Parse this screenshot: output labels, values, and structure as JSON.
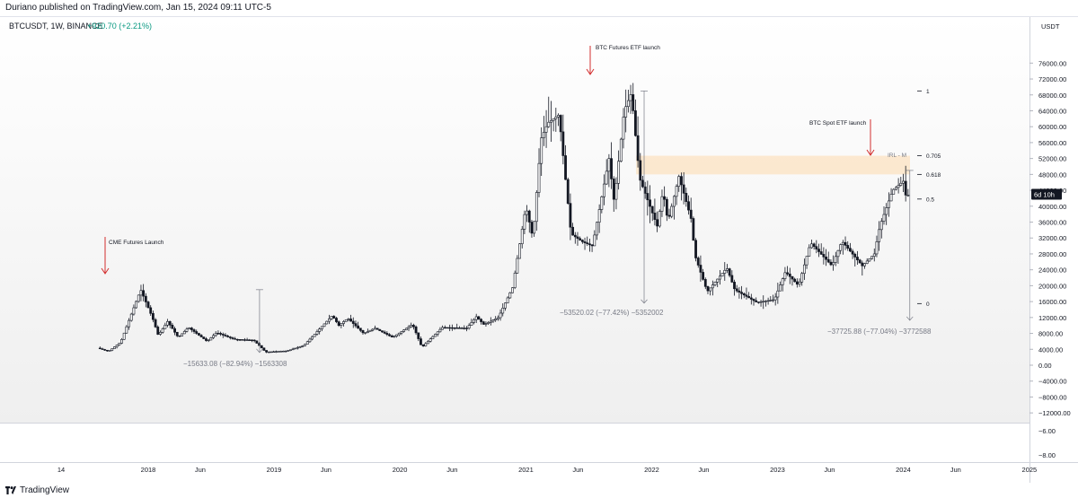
{
  "header": {
    "published": "Duriano published on TradingView.com, Jan 15, 2024 09:11 UTC-5"
  },
  "symbol": {
    "title": "BTCUSDT, 1W, BINANCE",
    "change": "+920.70 (+2.21%)",
    "change_color": "#089981"
  },
  "footer": {
    "brand": "TradingView"
  },
  "price_axis": {
    "currency": "USDT",
    "ticks": [
      "76000.00",
      "72000.00",
      "68000.00",
      "64000.00",
      "60000.00",
      "56000.00",
      "52000.00",
      "48000.00",
      "44000.00",
      "40000.00",
      "36000.00",
      "32000.00",
      "28000.00",
      "24000.00",
      "20000.00",
      "16000.00",
      "12000.00",
      "8000.00",
      "4000.00",
      "0.00",
      "−4000.00",
      "−8000.00",
      "−12000.00"
    ],
    "countdown": "6d 10h",
    "last_price": 43000
  },
  "sub_axis": {
    "ticks": [
      "−6.00",
      "−8.00"
    ]
  },
  "time_axis": {
    "labels": [
      "14",
      "2018",
      "Jun",
      "2019",
      "Jun",
      "2020",
      "Jun",
      "2021",
      "Jun",
      "2022",
      "Jun",
      "2023",
      "Jun",
      "2024",
      "Jun",
      "2025"
    ]
  },
  "annotations": {
    "cme": "CME Futures Launch",
    "futures_etf": "BTC Futures ETF launch",
    "spot_etf": "BTC Spot ETF launch",
    "measure1": "−15633.08 (−82.94%) −1563308",
    "measure2": "−53520.02 (−77.42%) −5352002",
    "measure3": "−37725.88 (−77.04%) −3772588",
    "zone_label": "IRL - M"
  },
  "fib_levels": [
    {
      "label": "1",
      "price": 69000
    },
    {
      "label": "0.705",
      "price": 52700
    },
    {
      "label": "0.618",
      "price": 48000
    },
    {
      "label": "0.5",
      "price": 41800
    },
    {
      "label": "0",
      "price": 15500
    }
  ],
  "colors": {
    "candle": "#131722",
    "arrow": "#d32f2f",
    "zone": "#fbe5c8",
    "measure": "#787b86",
    "countdown_bg": "#131722"
  },
  "chart_data": {
    "type": "candlestick",
    "title": "BTCUSDT, 1W, BINANCE",
    "ylim": [
      -12000,
      78000
    ],
    "x_range": [
      "2017-08-14",
      "2025-04-01"
    ],
    "anchors": [
      [
        "2017-08-14",
        4300
      ],
      [
        "2017-09-15",
        3500
      ],
      [
        "2017-10-20",
        5800
      ],
      [
        "2017-12-17",
        19000
      ],
      [
        "2018-01-20",
        12000
      ],
      [
        "2018-02-06",
        7500
      ],
      [
        "2018-03-05",
        11000
      ],
      [
        "2018-04-05",
        7000
      ],
      [
        "2018-05-05",
        9500
      ],
      [
        "2018-06-28",
        6000
      ],
      [
        "2018-07-25",
        8200
      ],
      [
        "2018-09-15",
        6500
      ],
      [
        "2018-11-10",
        6300
      ],
      [
        "2018-12-15",
        3300
      ],
      [
        "2019-02-15",
        3600
      ],
      [
        "2019-04-05",
        5000
      ],
      [
        "2019-06-26",
        12500
      ],
      [
        "2019-07-15",
        10000
      ],
      [
        "2019-08-10",
        11800
      ],
      [
        "2019-09-25",
        8000
      ],
      [
        "2019-10-28",
        9300
      ],
      [
        "2019-12-18",
        7000
      ],
      [
        "2020-02-14",
        10300
      ],
      [
        "2020-03-12",
        4500
      ],
      [
        "2020-05-10",
        9500
      ],
      [
        "2020-07-20",
        9300
      ],
      [
        "2020-08-17",
        12200
      ],
      [
        "2020-09-08",
        10200
      ],
      [
        "2020-10-20",
        12000
      ],
      [
        "2020-11-30",
        19500
      ],
      [
        "2021-01-08",
        40000
      ],
      [
        "2021-01-28",
        32000
      ],
      [
        "2021-02-21",
        57000
      ],
      [
        "2021-03-13",
        61000
      ],
      [
        "2021-04-14",
        63000
      ],
      [
        "2021-05-19",
        33000
      ],
      [
        "2021-06-22",
        31000
      ],
      [
        "2021-07-20",
        30000
      ],
      [
        "2021-09-06",
        52000
      ],
      [
        "2021-09-21",
        41000
      ],
      [
        "2021-10-20",
        64000
      ],
      [
        "2021-11-10",
        68500
      ],
      [
        "2021-12-04",
        47000
      ],
      [
        "2022-01-24",
        35000
      ],
      [
        "2022-02-10",
        44000
      ],
      [
        "2022-02-24",
        36000
      ],
      [
        "2022-03-28",
        47500
      ],
      [
        "2022-05-05",
        36000
      ],
      [
        "2022-05-12",
        28000
      ],
      [
        "2022-06-18",
        18500
      ],
      [
        "2022-08-14",
        24500
      ],
      [
        "2022-09-06",
        19000
      ],
      [
        "2022-11-09",
        15800
      ],
      [
        "2022-12-30",
        16500
      ],
      [
        "2023-01-31",
        23500
      ],
      [
        "2023-03-10",
        20000
      ],
      [
        "2023-04-14",
        30800
      ],
      [
        "2023-06-15",
        25000
      ],
      [
        "2023-07-14",
        31200
      ],
      [
        "2023-09-11",
        25000
      ],
      [
        "2023-10-16",
        28000
      ],
      [
        "2023-11-01",
        35000
      ],
      [
        "2023-12-08",
        44000
      ],
      [
        "2024-01-11",
        46500
      ],
      [
        "2024-01-15",
        42800
      ]
    ]
  }
}
